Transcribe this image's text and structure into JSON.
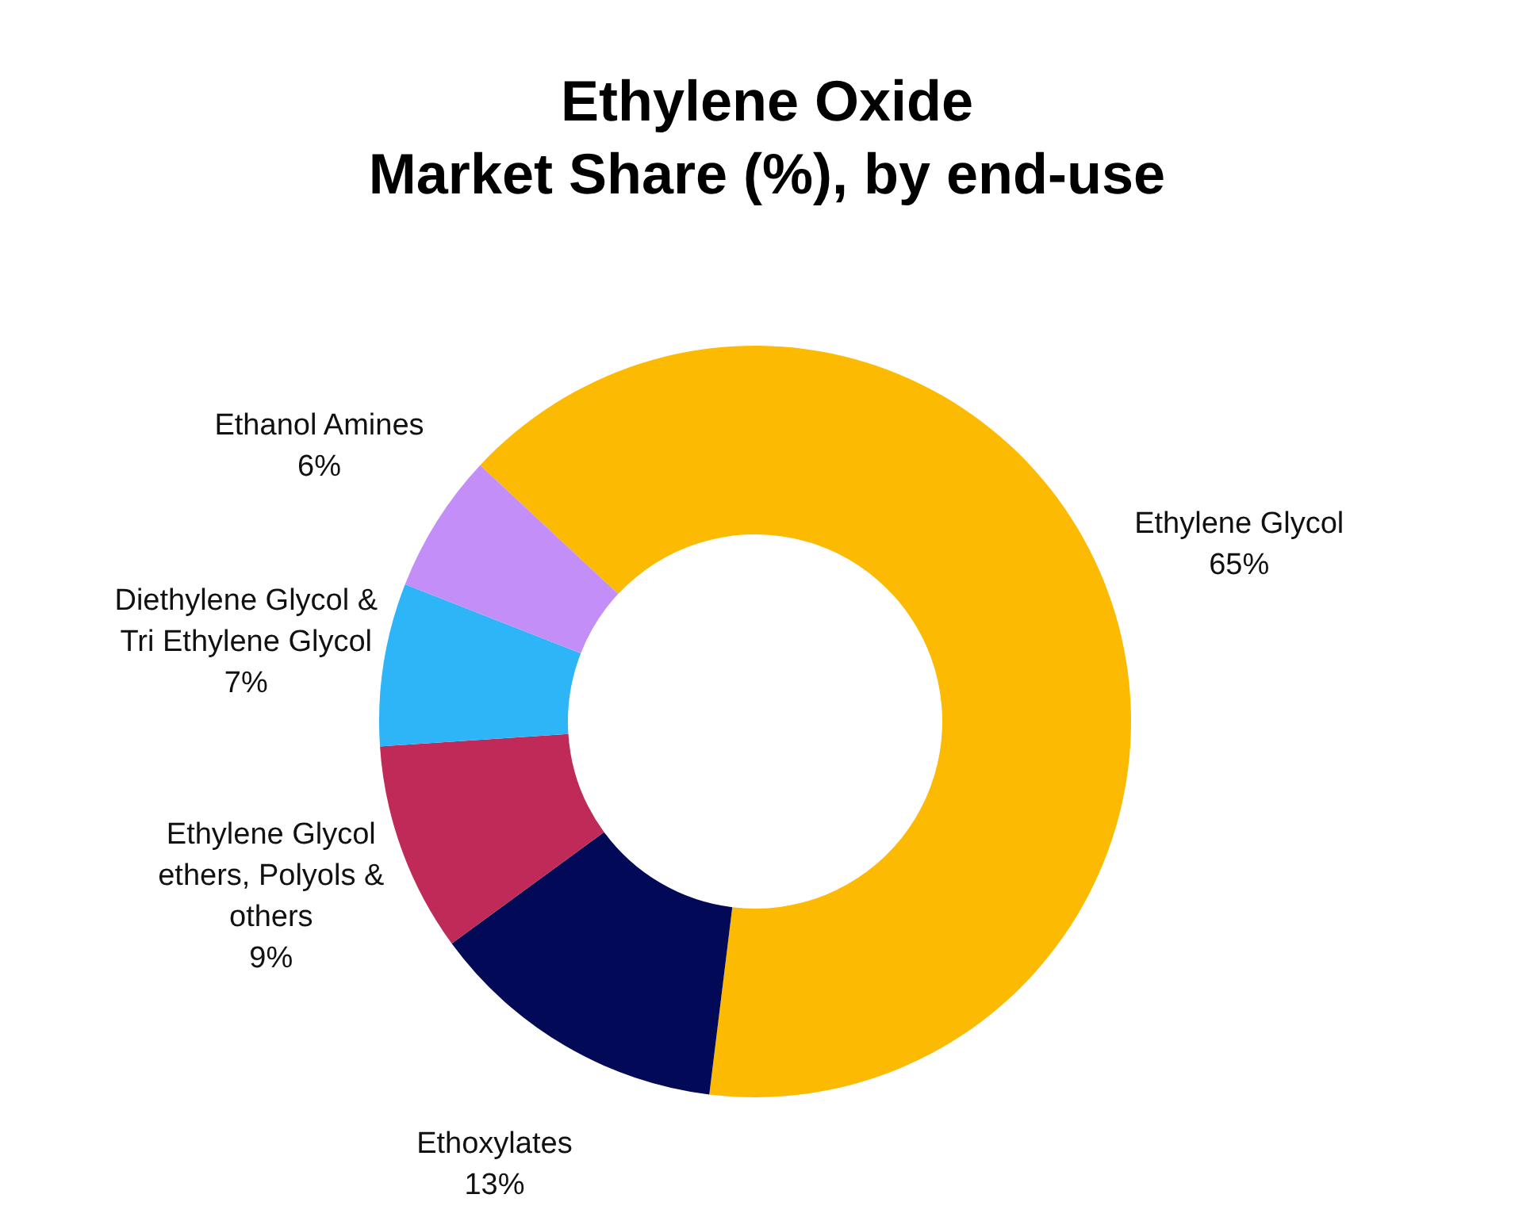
{
  "chart_data": {
    "type": "donut",
    "title": "Ethylene Oxide",
    "subtitle": "Market Share (%), by end-use",
    "categories": [
      "Ethylene Glycol",
      "Ethoxylates",
      "Ethylene Glycol ethers, Polyols & others",
      "Diethylene Glycol & Tri Ethylene Glycol",
      "Ethanol Amines"
    ],
    "values": [
      65,
      13,
      9,
      7,
      6
    ],
    "value_labels": [
      "65%",
      "13%",
      "9%",
      "7%",
      "6%"
    ],
    "colors": [
      "#fcba03",
      "#020a57",
      "#c02a58",
      "#2db5f8",
      "#c48ef9"
    ]
  }
}
